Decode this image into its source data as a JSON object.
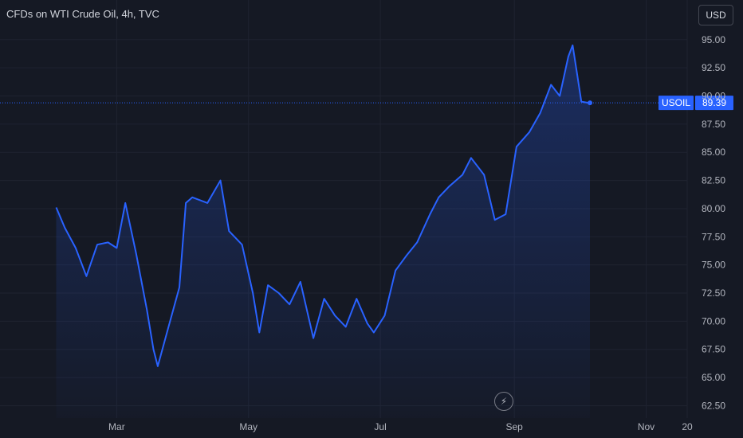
{
  "header": {
    "title": "CFDs on WTI Crude Oil, 4h, TVC",
    "currency": "USD"
  },
  "icons": {
    "event": "lightning-icon"
  },
  "colors": {
    "background": "#151924",
    "line": "#2962ff",
    "grid": "#1f2330",
    "label_bg": "#2962ff"
  },
  "chart_data": {
    "type": "area",
    "title": "CFDs on WTI Crude Oil, 4h, TVC",
    "symbol": "USOIL",
    "last_value": 89.39,
    "last_label": "89.39",
    "ylim": [
      61.4,
      96.4
    ],
    "ytick_values": [
      62.5,
      65,
      67.5,
      70,
      72.5,
      75,
      77.5,
      80,
      82.5,
      85,
      87.5,
      90,
      92.5,
      95
    ],
    "ytick_labels": [
      "62.50",
      "65.00",
      "67.50",
      "70.00",
      "72.50",
      "75.00",
      "77.50",
      "80.00",
      "82.50",
      "85.00",
      "87.50",
      "90.00",
      "92.50",
      "95.00"
    ],
    "xtick_labels": [
      "Mar",
      "May",
      "Jul",
      "Sep",
      "Nov",
      "20"
    ],
    "x": [
      "2023-02-01",
      "2023-02-05",
      "2023-02-10",
      "2023-02-15",
      "2023-02-20",
      "2023-02-25",
      "2023-03-01",
      "2023-03-05",
      "2023-03-10",
      "2023-03-15",
      "2023-03-18",
      "2023-03-20",
      "2023-03-25",
      "2023-03-30",
      "2023-04-02",
      "2023-04-05",
      "2023-04-12",
      "2023-04-18",
      "2023-04-22",
      "2023-04-28",
      "2023-05-03",
      "2023-05-06",
      "2023-05-10",
      "2023-05-15",
      "2023-05-20",
      "2023-05-25",
      "2023-05-31",
      "2023-06-05",
      "2023-06-10",
      "2023-06-15",
      "2023-06-20",
      "2023-06-25",
      "2023-06-28",
      "2023-07-03",
      "2023-07-08",
      "2023-07-13",
      "2023-07-18",
      "2023-07-24",
      "2023-07-28",
      "2023-08-02",
      "2023-08-08",
      "2023-08-12",
      "2023-08-18",
      "2023-08-23",
      "2023-08-28",
      "2023-09-02",
      "2023-09-08",
      "2023-09-13",
      "2023-09-18",
      "2023-09-22",
      "2023-09-26",
      "2023-09-28",
      "2023-09-30",
      "2023-10-02",
      "2023-10-05",
      "2023-10-06"
    ],
    "y": [
      80.1,
      78.3,
      76.5,
      74.0,
      76.8,
      77.0,
      76.5,
      80.5,
      76.0,
      71.0,
      67.5,
      66.0,
      69.5,
      73.0,
      80.5,
      81.0,
      80.5,
      82.5,
      78.0,
      76.8,
      72.5,
      69.0,
      73.2,
      72.5,
      71.5,
      73.5,
      68.5,
      72.0,
      70.5,
      69.5,
      72.0,
      69.8,
      69.0,
      70.5,
      74.5,
      75.8,
      77.0,
      79.5,
      81.0,
      82.0,
      83.0,
      84.5,
      83.0,
      79.0,
      79.5,
      85.5,
      86.8,
      88.5,
      91.0,
      90.0,
      93.5,
      94.5,
      92.0,
      89.5,
      89.4,
      89.39
    ]
  }
}
